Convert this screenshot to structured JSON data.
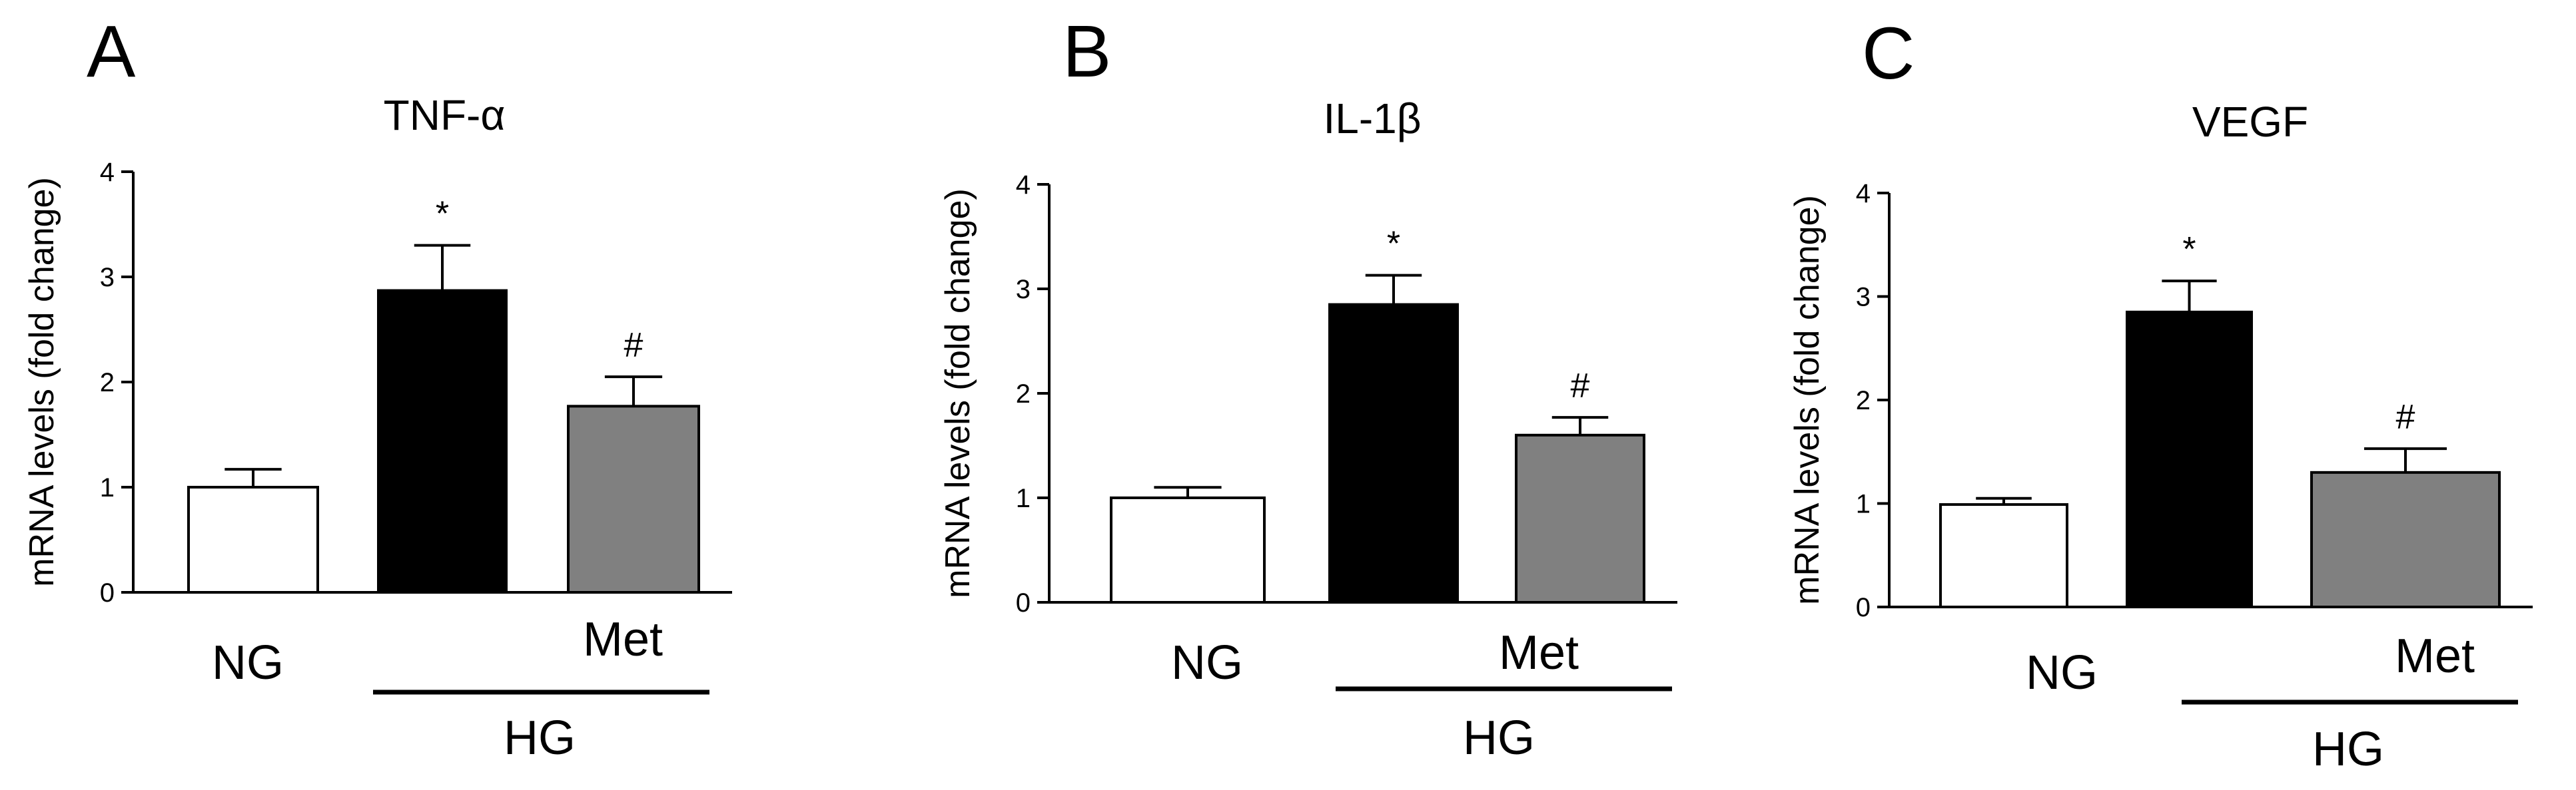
{
  "chart_data": [
    {
      "type": "bar",
      "panel_label": "A",
      "title": "TNF-α",
      "ylabel": "mRNA levels  (fold change)",
      "xlabel": "",
      "ylim": [
        0,
        4
      ],
      "yticks": [
        "0",
        "1",
        "2",
        "3",
        "4"
      ],
      "grid": false,
      "categories": [
        "NG",
        "HG",
        "HG + Met"
      ],
      "values": [
        1.0,
        2.87,
        1.77
      ],
      "errors": [
        0.17,
        0.43,
        0.28
      ],
      "bar_colors": [
        "#ffffff",
        "#000000",
        "#808080"
      ],
      "annotations": [
        "",
        "*",
        "#"
      ],
      "group_labels": {
        "ng": "NG",
        "met": "Met",
        "hg": "HG"
      }
    },
    {
      "type": "bar",
      "panel_label": "B",
      "title": "IL-1β",
      "ylabel": "mRNA levels  (fold change)",
      "xlabel": "",
      "ylim": [
        0,
        4
      ],
      "yticks": [
        "0",
        "1",
        "2",
        "3",
        "4"
      ],
      "grid": false,
      "categories": [
        "NG",
        "HG",
        "HG + Met"
      ],
      "values": [
        1.0,
        2.85,
        1.6
      ],
      "errors": [
        0.1,
        0.28,
        0.17
      ],
      "bar_colors": [
        "#ffffff",
        "#000000",
        "#808080"
      ],
      "annotations": [
        "",
        "*",
        "#"
      ],
      "group_labels": {
        "ng": "NG",
        "met": "Met",
        "hg": "HG"
      }
    },
    {
      "type": "bar",
      "panel_label": "C",
      "title": "VEGF",
      "ylabel": "mRNA levels (fold change)",
      "xlabel": "",
      "ylim": [
        0,
        4
      ],
      "yticks": [
        "0",
        "1",
        "2",
        "3",
        "4"
      ],
      "grid": false,
      "categories": [
        "NG",
        "HG",
        "HG + Met"
      ],
      "values": [
        0.99,
        2.85,
        1.3
      ],
      "errors": [
        0.06,
        0.3,
        0.23
      ],
      "bar_colors": [
        "#ffffff",
        "#000000",
        "#808080"
      ],
      "annotations": [
        "",
        "*",
        "#"
      ],
      "group_labels": {
        "ng": "NG",
        "met": "Met",
        "hg": "HG"
      }
    }
  ]
}
